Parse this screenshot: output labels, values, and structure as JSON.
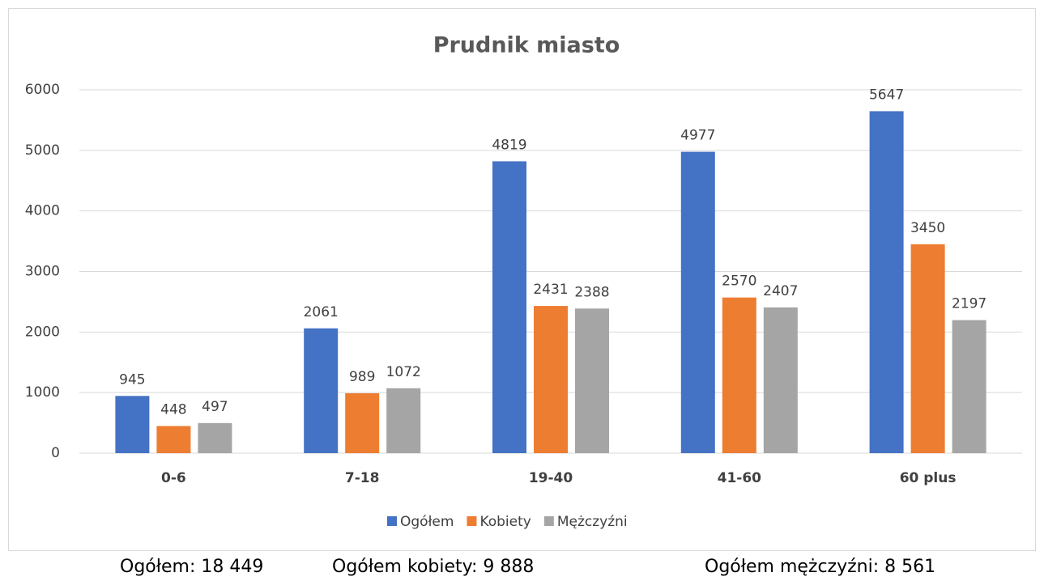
{
  "chart_data": {
    "type": "bar",
    "title": "Prudnik miasto",
    "categories": [
      "0-6",
      "7-18",
      "19-40",
      "41-60",
      "60 plus"
    ],
    "series": [
      {
        "name": "Ogółem",
        "color": "#4472c4",
        "values": [
          945,
          2061,
          4819,
          4977,
          5647
        ]
      },
      {
        "name": "Kobiety",
        "color": "#ed7d31",
        "values": [
          448,
          989,
          2431,
          2570,
          3450
        ]
      },
      {
        "name": "Mężczyźni",
        "color": "#a5a5a5",
        "values": [
          497,
          1072,
          2388,
          2407,
          2197
        ]
      }
    ],
    "ylim": [
      0,
      6000
    ],
    "yticks": [
      0,
      1000,
      2000,
      3000,
      4000,
      5000,
      6000
    ],
    "grid": true,
    "legend": "bottom"
  },
  "footer": [
    "Ogółem: 18 449",
    "Ogółem kobiety: 9 888",
    "Ogółem mężczyźni: 8 561"
  ]
}
